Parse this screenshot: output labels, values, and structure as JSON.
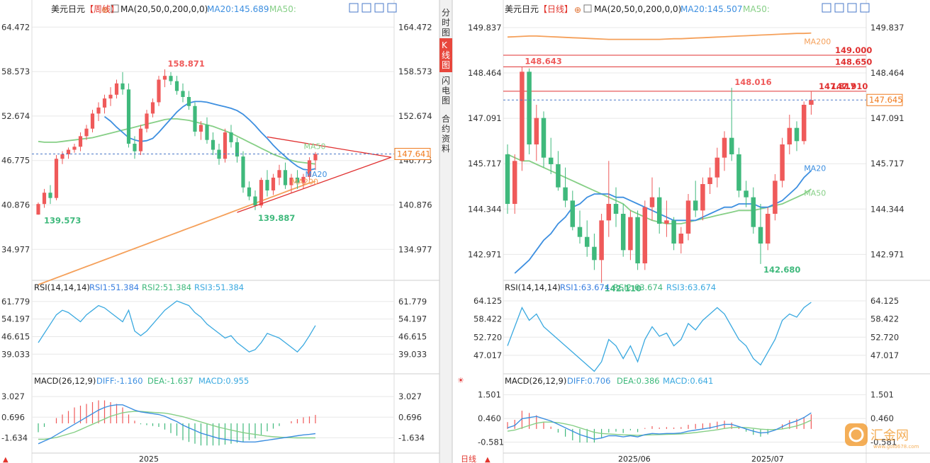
{
  "colors": {
    "up": "#ef5a5a",
    "down": "#3fb97c",
    "ma20": "#3d8fe0",
    "ma50": "#86cf86",
    "ma200": "#f5a05a",
    "rsi": "#3aa9e0",
    "diff": "#3d8fe0",
    "dea": "#86cf86",
    "grid": "#e8e8e8",
    "axis_text": "#333333",
    "red_line": "#e03030",
    "last_price": "#f07b1f",
    "price_dash": "#4a78c8"
  },
  "left": {
    "symbol": "美元日元",
    "period": "【周线】",
    "ma_params": "MA(20,50,0,200,0,0)",
    "ma20_label": "MA20:145.689",
    "ma50_label": "MA50:",
    "price_ticks": [
      "164.472",
      "158.573",
      "152.674",
      "146.775",
      "140.876",
      "134.977"
    ],
    "price_ticks_left": [
      "64.472",
      "58.573",
      "52.674",
      "46.775",
      "40.876",
      "34.977"
    ],
    "high_label": "158.871",
    "low_label1": "139.573",
    "low_label2": "139.887",
    "last_price": "147.641",
    "line_labels": {
      "ma20": "MA20",
      "ma50": "MA50",
      "ma200": "MA200"
    },
    "rsi_title": "RSI(14,14,14)",
    "rsi1": "RSI1:51.384",
    "rsi2": "RSI2:51.384",
    "rsi3": "RSI3:51.384",
    "rsi_ticks": [
      "61.779",
      "54.197",
      "46.615",
      "39.033"
    ],
    "macd_title": "MACD(26,12,9)",
    "macd_diff": "DIFF:-1.160",
    "macd_dea": "DEA:-1.637",
    "macd_val": "MACD:0.955",
    "macd_ticks": [
      "3.027",
      "0.696",
      "-1.634"
    ],
    "x_label": "2025",
    "bottom_arrow": "▲",
    "sidebar": [
      "分时图",
      "K线图",
      "闪电图",
      "合约资料"
    ]
  },
  "right": {
    "symbol": "美元日元",
    "period": "【日线】",
    "ma_params": "MA(20,50,0,200,0,0)",
    "ma20_label": "MA20:145.507",
    "ma50_label": "MA50:",
    "price_ticks": [
      "149.837",
      "148.464",
      "147.091",
      "145.717",
      "144.344",
      "142.971"
    ],
    "high_label": "148.643",
    "mid_high_label": "148.016",
    "low_label1": "142.110",
    "low_label2": "142.680",
    "last_high_label": "147.910",
    "last_high_label_overlap": "147.817",
    "level1": "149.000",
    "level2": "148.650",
    "last_price": "147.645",
    "line_labels": {
      "ma20": "MA20",
      "ma50": "MA50",
      "ma200": "MA200"
    },
    "rsi_title": "RSI(14,14,14)",
    "rsi1": "RSI1:63.674",
    "rsi2": "RSI2:63.674",
    "rsi3": "RSI3:63.674",
    "rsi_ticks": [
      "64.125",
      "58.422",
      "52.720",
      "47.017"
    ],
    "macd_title": "MACD(26,12,9)",
    "macd_diff": "DIFF:0.706",
    "macd_dea": "DEA:0.386",
    "macd_val": "MACD:0.641",
    "macd_ticks": [
      "1.501",
      "0.460",
      "-0.581"
    ],
    "x_labels": [
      "2025/06",
      "2025/07"
    ],
    "period_tab": "日线",
    "bottom_arrow": "▲",
    "watermark": "汇金网",
    "watermark_url": "www.gold678.com"
  },
  "chart_data": [
    {
      "type": "candlestick",
      "name": "USDJPY weekly",
      "ylim": [
        132.0,
        166.0
      ],
      "candles": [
        [
          139.6,
          141.2,
          139.57,
          141.0
        ],
        [
          141.0,
          143.0,
          140.5,
          142.5
        ],
        [
          142.5,
          143.5,
          141.0,
          141.8
        ],
        [
          141.8,
          147.5,
          141.5,
          147.0
        ],
        [
          147.0,
          148.0,
          146.3,
          147.6
        ],
        [
          147.6,
          148.5,
          147.0,
          148.2
        ],
        [
          148.2,
          149.0,
          147.8,
          148.6
        ],
        [
          148.6,
          150.5,
          148.0,
          150.0
        ],
        [
          150.0,
          151.5,
          149.5,
          151.0
        ],
        [
          151.0,
          153.5,
          150.5,
          153.0
        ],
        [
          153.0,
          154.5,
          152.0,
          153.8
        ],
        [
          153.8,
          155.5,
          153.0,
          155.0
        ],
        [
          155.0,
          156.5,
          154.0,
          155.5
        ],
        [
          155.5,
          157.5,
          155.0,
          157.0
        ],
        [
          157.0,
          158.5,
          155.5,
          156.2
        ],
        [
          156.2,
          157.0,
          148.5,
          149.0
        ],
        [
          149.0,
          150.0,
          147.0,
          148.0
        ],
        [
          148.0,
          151.5,
          147.5,
          151.0
        ],
        [
          151.0,
          153.5,
          150.5,
          153.0
        ],
        [
          153.0,
          155.0,
          152.5,
          154.5
        ],
        [
          154.5,
          158.0,
          154.0,
          157.5
        ],
        [
          157.5,
          158.87,
          156.5,
          158.0
        ],
        [
          158.0,
          158.5,
          156.8,
          157.3
        ],
        [
          157.3,
          158.0,
          155.5,
          156.0
        ],
        [
          156.0,
          157.0,
          154.5,
          155.2
        ],
        [
          155.2,
          156.0,
          153.5,
          154.0
        ],
        [
          154.0,
          154.5,
          150.0,
          150.6
        ],
        [
          150.6,
          152.0,
          149.5,
          151.5
        ],
        [
          151.5,
          152.5,
          149.0,
          149.5
        ],
        [
          149.5,
          150.5,
          147.5,
          148.2
        ],
        [
          148.2,
          149.0,
          146.2,
          147.0
        ],
        [
          147.0,
          151.0,
          146.5,
          150.5
        ],
        [
          150.5,
          151.5,
          148.5,
          149.2
        ],
        [
          149.2,
          149.8,
          146.5,
          147.3
        ],
        [
          147.3,
          148.0,
          142.5,
          143.2
        ],
        [
          143.2,
          144.0,
          141.5,
          142.0
        ],
        [
          142.0,
          142.8,
          140.2,
          140.8
        ],
        [
          140.8,
          144.5,
          140.5,
          144.2
        ],
        [
          144.2,
          145.5,
          142.0,
          142.8
        ],
        [
          142.8,
          145.0,
          142.2,
          144.5
        ],
        [
          144.5,
          146.2,
          143.5,
          145.5
        ],
        [
          145.5,
          146.5,
          143.0,
          143.5
        ],
        [
          143.5,
          145.0,
          142.5,
          144.5
        ],
        [
          144.5,
          145.5,
          143.0,
          143.8
        ],
        [
          143.8,
          145.0,
          143.0,
          144.6
        ],
        [
          144.6,
          147.2,
          144.0,
          146.8
        ],
        [
          146.8,
          147.9,
          145.5,
          147.64
        ]
      ],
      "ma20": [
        null,
        null,
        null,
        null,
        null,
        null,
        null,
        null,
        null,
        null,
        null,
        152.6,
        152.0,
        151.2,
        150.5,
        149.8,
        149.5,
        149.3,
        149.4,
        149.7,
        150.5,
        151.4,
        152.3,
        153.2,
        153.9,
        154.4,
        154.6,
        154.6,
        154.5,
        154.3,
        154.1,
        153.9,
        153.7,
        153.4,
        152.9,
        152.2,
        151.4,
        150.5,
        149.7,
        148.8,
        148.0,
        147.3,
        146.6,
        146.0,
        145.6,
        145.5,
        145.689
      ],
      "ma50": [
        149.3,
        149.2,
        149.2,
        149.2,
        149.3,
        149.4,
        149.5,
        149.6,
        149.7,
        149.8,
        150.0,
        150.2,
        150.4,
        150.6,
        150.8,
        151.0,
        151.2,
        151.4,
        151.6,
        151.8,
        152.0,
        152.2,
        152.3,
        152.3,
        152.2,
        152.1,
        151.9,
        151.7,
        151.5,
        151.3,
        151.0,
        150.7,
        150.4,
        150.0,
        149.6,
        149.2,
        148.8,
        148.4,
        148.0,
        147.6,
        147.3,
        147.0,
        146.8,
        146.6,
        146.5,
        146.4,
        146.3
      ],
      "ma200": [
        130.3,
        130.6,
        130.9,
        131.2,
        131.5,
        131.8,
        132.1,
        132.4,
        132.7,
        133.0,
        133.3,
        133.6,
        133.9,
        134.2,
        134.5,
        134.8,
        135.1,
        135.4,
        135.7,
        136.0,
        136.3,
        136.6,
        136.9,
        137.2,
        137.5,
        137.8,
        138.1,
        138.4,
        138.7,
        139.0,
        139.3,
        139.6,
        139.9,
        140.2,
        140.5,
        140.8,
        141.1,
        141.4,
        141.7,
        142.0,
        142.3,
        142.6,
        142.9,
        143.2,
        143.5,
        143.8,
        144.0
      ],
      "triangle": {
        "upper": [
          [
            28,
            149.9
          ],
          [
            46,
            148.0
          ]
        ],
        "lower": [
          [
            30,
            139.887
          ],
          [
            46,
            146.5
          ]
        ],
        "apex": 147.2
      },
      "rsi": [
        44,
        48,
        52,
        56,
        58,
        57,
        55,
        53,
        56,
        58,
        60,
        59,
        57,
        55,
        53,
        58,
        49,
        47,
        49,
        52,
        55,
        58,
        60,
        62,
        61,
        60,
        57,
        55,
        52,
        50,
        48,
        46,
        47,
        44,
        42,
        40,
        41,
        44,
        48,
        47,
        46,
        44,
        42,
        40,
        43,
        47,
        51.38
      ],
      "rsi_ylim": [
        33.0,
        66.0
      ],
      "macd_diff": [
        -2.3,
        -2.0,
        -1.7,
        -1.3,
        -0.9,
        -0.5,
        -0.1,
        0.3,
        0.7,
        1.1,
        1.5,
        1.8,
        2.0,
        2.1,
        2.1,
        1.8,
        1.5,
        1.3,
        1.2,
        1.1,
        1.0,
        0.8,
        0.5,
        0.2,
        -0.2,
        -0.5,
        -0.8,
        -1.1,
        -1.3,
        -1.5,
        -1.7,
        -1.8,
        -1.9,
        -2.0,
        -2.1,
        -2.1,
        -2.1,
        -2.0,
        -1.9,
        -1.8,
        -1.7,
        -1.6,
        -1.5,
        -1.4,
        -1.3,
        -1.25,
        -1.16
      ],
      "macd_dea": [
        -1.8,
        -1.8,
        -1.7,
        -1.6,
        -1.4,
        -1.2,
        -1.0,
        -0.7,
        -0.4,
        -0.1,
        0.2,
        0.5,
        0.8,
        1.0,
        1.2,
        1.3,
        1.35,
        1.35,
        1.3,
        1.25,
        1.2,
        1.15,
        1.05,
        0.9,
        0.75,
        0.55,
        0.35,
        0.15,
        -0.05,
        -0.25,
        -0.45,
        -0.6,
        -0.75,
        -0.9,
        -1.05,
        -1.15,
        -1.25,
        -1.35,
        -1.45,
        -1.5,
        -1.55,
        -1.6,
        -1.62,
        -1.64,
        -1.64,
        -1.64,
        -1.637
      ],
      "macd_ylim": [
        -3.2,
        4.0
      ]
    },
    {
      "type": "candlestick",
      "name": "USDJPY daily",
      "ylim": [
        142.4,
        150.2
      ],
      "candles": [
        [
          146.0,
          146.3,
          144.2,
          144.5
        ],
        [
          144.5,
          146.0,
          144.2,
          145.8
        ],
        [
          145.8,
          148.64,
          145.5,
          148.5
        ],
        [
          148.5,
          148.6,
          146.0,
          146.3
        ],
        [
          146.3,
          147.5,
          145.8,
          147.1
        ],
        [
          147.1,
          147.3,
          145.6,
          145.9
        ],
        [
          145.9,
          146.5,
          145.4,
          145.7
        ],
        [
          145.7,
          146.1,
          144.9,
          145.0
        ],
        [
          145.0,
          145.6,
          144.4,
          144.6
        ],
        [
          144.6,
          144.9,
          143.7,
          143.8
        ],
        [
          143.8,
          144.3,
          143.3,
          143.5
        ],
        [
          143.5,
          144.0,
          142.9,
          143.2
        ],
        [
          143.2,
          143.6,
          142.5,
          142.8
        ],
        [
          142.8,
          144.2,
          142.11,
          144.0
        ],
        [
          144.0,
          145.8,
          143.5,
          144.5
        ],
        [
          144.5,
          145.0,
          143.8,
          144.2
        ],
        [
          144.2,
          144.5,
          142.9,
          143.1
        ],
        [
          143.1,
          144.3,
          142.8,
          144.1
        ],
        [
          144.1,
          144.3,
          142.5,
          142.7
        ],
        [
          142.7,
          144.6,
          142.5,
          144.4
        ],
        [
          144.4,
          145.3,
          144.0,
          144.7
        ],
        [
          144.7,
          145.0,
          143.6,
          143.9
        ],
        [
          143.9,
          144.6,
          143.5,
          144.0
        ],
        [
          144.0,
          144.1,
          143.1,
          143.3
        ],
        [
          143.3,
          143.8,
          143.0,
          143.6
        ],
        [
          143.6,
          144.8,
          143.4,
          144.6
        ],
        [
          144.6,
          145.2,
          144.1,
          144.3
        ],
        [
          144.3,
          145.3,
          144.0,
          145.1
        ],
        [
          145.1,
          145.6,
          144.8,
          145.3
        ],
        [
          145.3,
          146.2,
          145.0,
          145.9
        ],
        [
          145.9,
          146.7,
          145.5,
          146.5
        ],
        [
          146.5,
          148.016,
          145.8,
          146.0
        ],
        [
          146.0,
          146.2,
          144.7,
          144.9
        ],
        [
          144.9,
          145.2,
          144.4,
          144.7
        ],
        [
          144.7,
          145.0,
          143.6,
          143.8
        ],
        [
          143.8,
          144.5,
          142.68,
          143.3
        ],
        [
          143.3,
          144.4,
          143.1,
          144.2
        ],
        [
          144.2,
          145.4,
          144.0,
          145.2
        ],
        [
          145.2,
          146.5,
          145.0,
          146.3
        ],
        [
          146.3,
          147.2,
          146.0,
          146.8
        ],
        [
          146.8,
          147.0,
          146.1,
          146.4
        ],
        [
          146.4,
          147.6,
          146.3,
          147.5
        ],
        [
          147.5,
          147.91,
          147.2,
          147.645
        ]
      ],
      "ma20": [
        null,
        142.4,
        142.6,
        142.8,
        143.1,
        143.4,
        143.6,
        143.9,
        144.1,
        144.4,
        144.5,
        144.7,
        144.8,
        144.8,
        144.8,
        144.7,
        144.7,
        144.6,
        144.5,
        144.4,
        144.3,
        144.2,
        144.1,
        144.0,
        144.0,
        144.0,
        144.0,
        144.1,
        144.2,
        144.3,
        144.4,
        144.4,
        144.5,
        144.5,
        144.5,
        144.4,
        144.4,
        144.5,
        144.6,
        144.8,
        145.0,
        145.3,
        145.507
      ],
      "ma50": [
        146.0,
        145.9,
        145.8,
        145.8,
        145.7,
        145.6,
        145.5,
        145.4,
        145.3,
        145.2,
        145.1,
        145.0,
        144.9,
        144.8,
        144.7,
        144.6,
        144.5,
        144.3,
        144.2,
        144.1,
        144.0,
        143.95,
        143.9,
        143.9,
        143.9,
        143.95,
        144.0,
        144.05,
        144.1,
        144.15,
        144.2,
        144.25,
        144.3,
        144.3,
        144.3,
        144.35,
        144.4,
        144.45,
        144.5,
        144.6,
        144.7,
        144.8,
        144.95
      ],
      "ma200": [
        149.55,
        149.56,
        149.57,
        149.58,
        149.58,
        149.57,
        149.56,
        149.55,
        149.54,
        149.53,
        149.52,
        149.51,
        149.5,
        149.49,
        149.48,
        149.48,
        149.48,
        149.48,
        149.48,
        149.48,
        149.48,
        149.48,
        149.49,
        149.5,
        149.5,
        149.51,
        149.52,
        149.53,
        149.54,
        149.55,
        149.56,
        149.57,
        149.58,
        149.59,
        149.6,
        149.61,
        149.62,
        149.63,
        149.64,
        149.65,
        149.66,
        149.66,
        149.67
      ],
      "levels": [
        149.0,
        148.65,
        147.91
      ],
      "rsi": [
        50,
        56,
        62,
        58,
        60,
        56,
        54,
        52,
        50,
        48,
        46,
        44,
        42,
        45,
        52,
        50,
        46,
        50,
        45,
        52,
        56,
        53,
        54,
        50,
        52,
        57,
        55,
        58,
        60,
        62,
        60,
        56,
        52,
        50,
        46,
        44,
        48,
        52,
        58,
        60,
        59,
        62,
        63.67
      ],
      "rsi_ylim": [
        43.0,
        67.0
      ],
      "macd_diff": [
        0.05,
        0.15,
        0.45,
        0.5,
        0.55,
        0.45,
        0.35,
        0.2,
        0.05,
        -0.1,
        -0.25,
        -0.35,
        -0.45,
        -0.4,
        -0.3,
        -0.3,
        -0.35,
        -0.3,
        -0.35,
        -0.25,
        -0.2,
        -0.22,
        -0.2,
        -0.2,
        -0.18,
        -0.1,
        -0.05,
        0.0,
        0.05,
        0.12,
        0.2,
        0.2,
        0.1,
        0.0,
        -0.1,
        -0.18,
        -0.15,
        -0.05,
        0.1,
        0.25,
        0.35,
        0.5,
        0.706
      ],
      "macd_dea": [
        -0.1,
        -0.05,
        0.05,
        0.15,
        0.25,
        0.3,
        0.3,
        0.28,
        0.22,
        0.15,
        0.05,
        -0.05,
        -0.15,
        -0.2,
        -0.22,
        -0.24,
        -0.26,
        -0.27,
        -0.28,
        -0.27,
        -0.26,
        -0.25,
        -0.24,
        -0.23,
        -0.22,
        -0.19,
        -0.16,
        -0.12,
        -0.08,
        -0.04,
        0.02,
        0.06,
        0.07,
        0.06,
        0.03,
        -0.01,
        -0.03,
        -0.03,
        0.0,
        0.06,
        0.13,
        0.24,
        0.386
      ],
      "macd_ylim": [
        -1.0,
        1.8
      ]
    }
  ]
}
